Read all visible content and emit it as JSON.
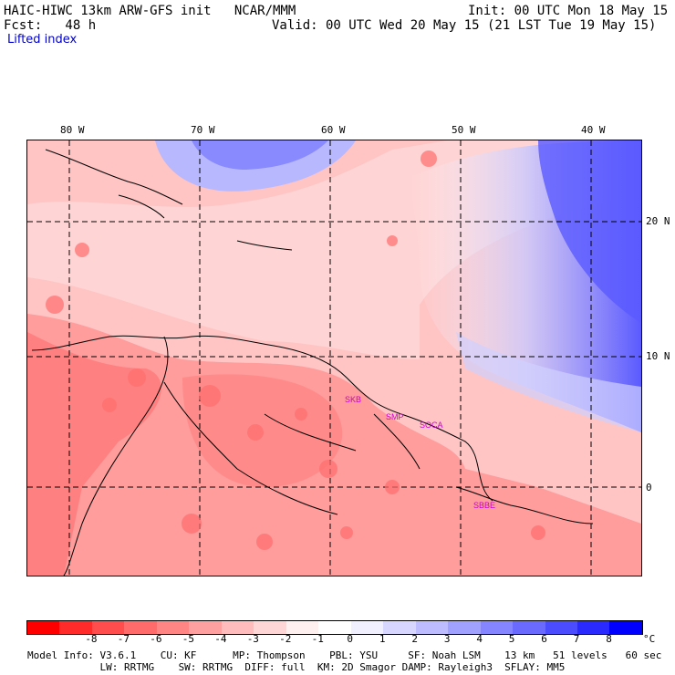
{
  "header": {
    "model_line": "HAIC-HIWC 13km ARW-GFS init   NCAR/MMM",
    "init_line": "Init: 00 UTC Mon 18 May 15",
    "fcst_line": "Fcst:   48 h",
    "valid_line": "Valid: 00 UTC Wed 20 May 15 (21 LST Tue 19 May 15)",
    "field_name": "Lifted index"
  },
  "map": {
    "lon_labels": [
      "80 W",
      "70 W",
      "60 W",
      "50 W",
      "40 W"
    ],
    "lat_labels": [
      "20 N",
      "10 N",
      "0"
    ],
    "stations": [
      "SKB",
      "SMP",
      "SOCA",
      "SBBE"
    ]
  },
  "colorbar": {
    "colors": [
      "#ff0000",
      "#ff2a2a",
      "#ff4c4c",
      "#ff6a6a",
      "#ff8585",
      "#ffa0a0",
      "#ffbcbc",
      "#ffd6d6",
      "#fff0f0",
      "#ffffff",
      "#f0f0ff",
      "#d6d6ff",
      "#bcbcff",
      "#a0a0ff",
      "#8585ff",
      "#6a6aff",
      "#4c4cff",
      "#2a2aff",
      "#0000ff"
    ],
    "ticks": [
      "-8",
      "-7",
      "-6",
      "-5",
      "-4",
      "-3",
      "-2",
      "-1",
      "0",
      "1",
      "2",
      "3",
      "4",
      "5",
      "6",
      "7",
      "8"
    ],
    "unit": "°C"
  },
  "footer": {
    "line1": "Model Info: V3.6.1    CU: KF      MP: Thompson    PBL: YSU     SF: Noah LSM    13 km   51 levels   60 sec",
    "line2": "            LW: RRTMG    SW: RRTMG  DIFF: full  KM: 2D Smagor DAMP: Rayleigh3  SFLAY: MM5"
  }
}
